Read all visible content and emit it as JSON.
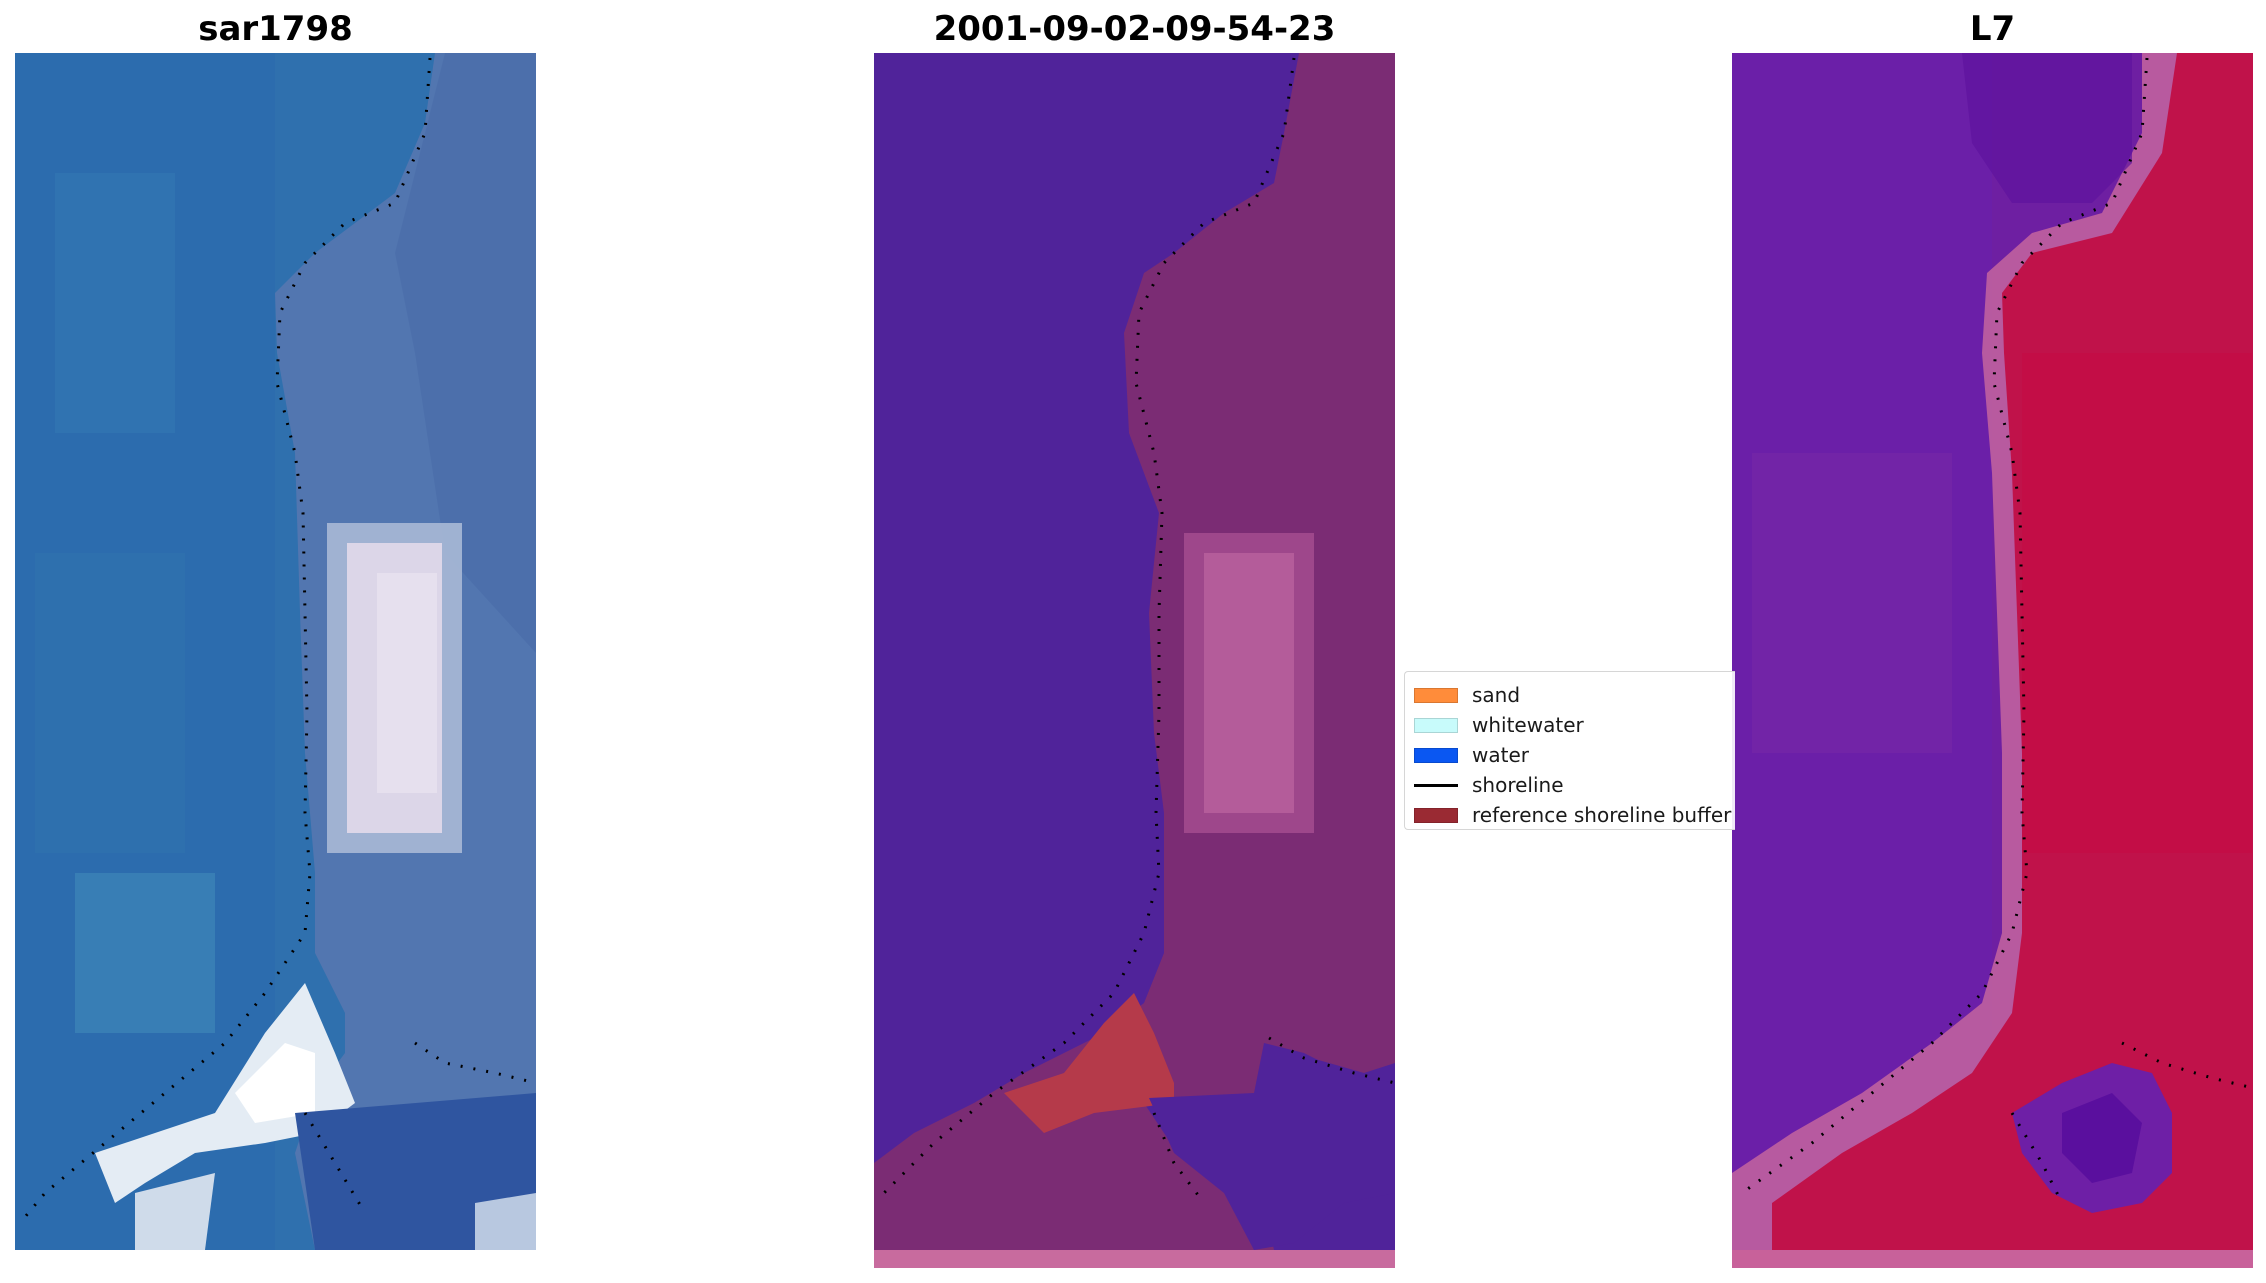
{
  "panels": [
    {
      "title": "sar1798"
    },
    {
      "title": "2001-09-02-09-54-23"
    },
    {
      "title": "L7"
    }
  ],
  "legend": {
    "items": [
      {
        "label": "sand",
        "color": "#ff8c3a"
      },
      {
        "label": "whitewater",
        "color": "#c8fbfb"
      },
      {
        "label": "water",
        "color": "#0a57f2"
      },
      {
        "label": "shoreline",
        "color": "#000000"
      },
      {
        "label": "reference shoreline buffer",
        "color": "#9a2a33"
      }
    ]
  },
  "colors": {
    "rgb_water": "#2f6fae",
    "rgb_land": "#4a6fb0",
    "classified_water": "#50239a",
    "classified_land": "#7a2c75",
    "classified_sand": "#b53a4a",
    "index_water": "#6b1fa6",
    "index_land": "#c0124a"
  }
}
